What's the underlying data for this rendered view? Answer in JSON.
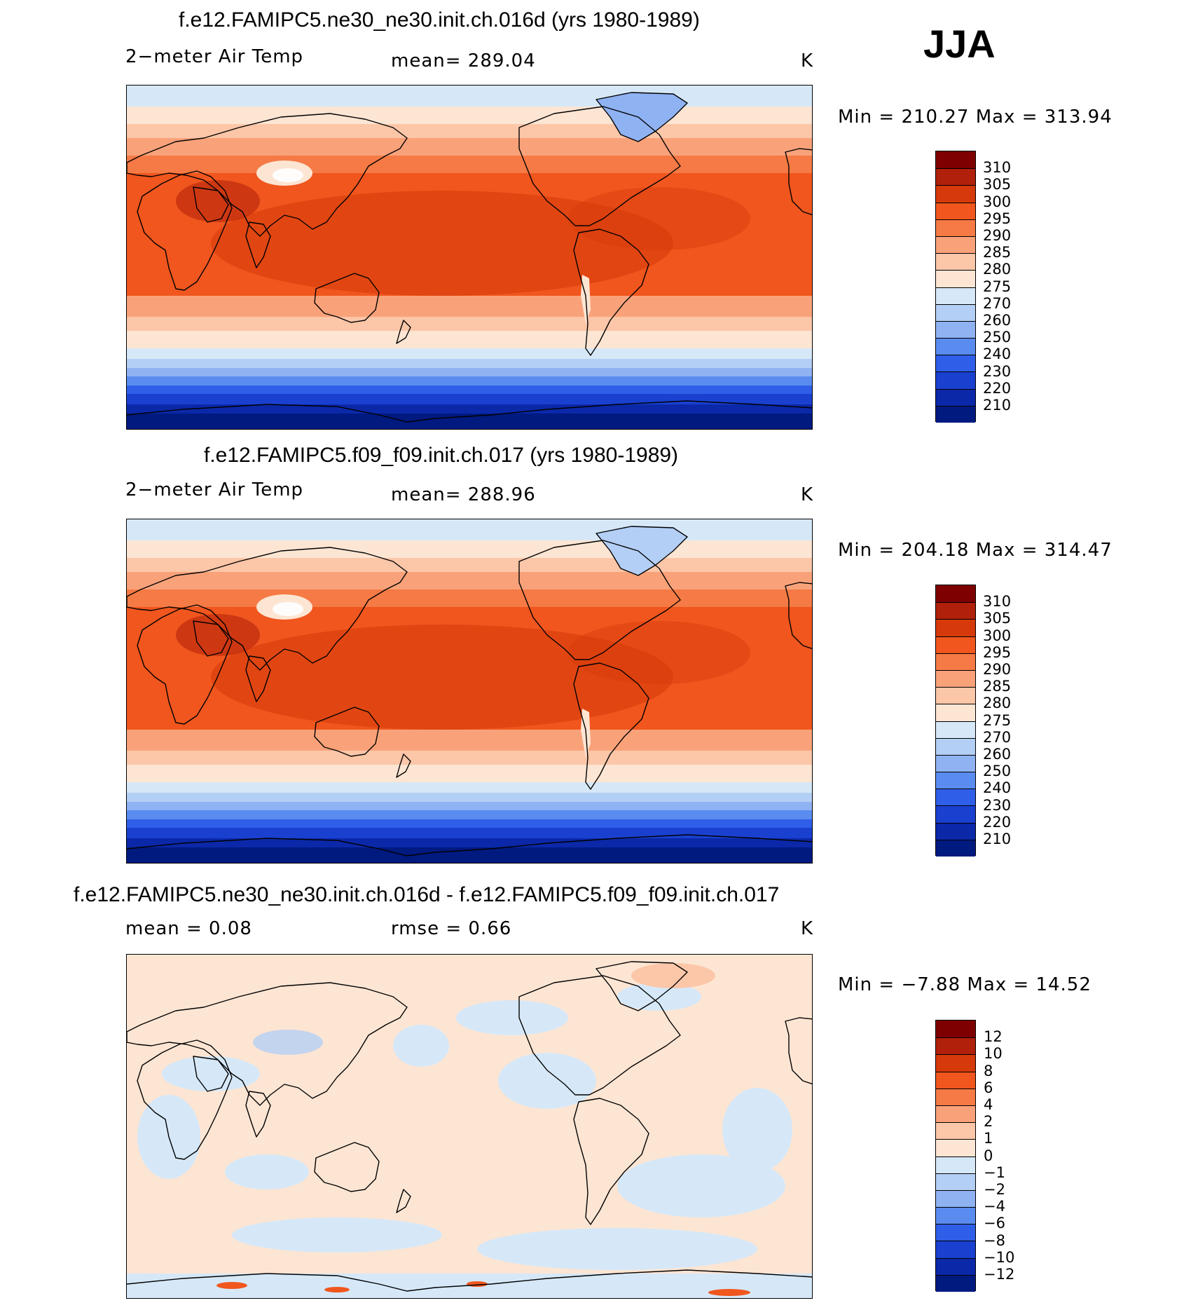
{
  "season": "JJA",
  "panels": [
    {
      "title": "f.e12.FAMIPC5.ne30_ne30.init.ch.016d (yrs 1980-1989)",
      "left_label": "2−meter Air Temp",
      "center_label": "mean=  289.04",
      "units": "K",
      "minmax": "Min  =  210.27  Max  =  313.94",
      "kind": "abs"
    },
    {
      "title": "f.e12.FAMIPC5.f09_f09.init.ch.017 (yrs 1980-1989)",
      "left_label": "2−meter Air Temp",
      "center_label": "mean=  288.96",
      "units": "K",
      "minmax": "Min  =  204.18  Max  =  314.47",
      "kind": "abs"
    },
    {
      "title": "f.e12.FAMIPC5.ne30_ne30.init.ch.016d - f.e12.FAMIPC5.f09_f09.init.ch.017",
      "left_label": "mean  =     0.08",
      "center_label": "rmse  =     0.66",
      "units": "K",
      "minmax": "Min  =    −7.88  Max  =    14.52",
      "kind": "diff"
    }
  ],
  "colorbars": {
    "abs": {
      "labels": [
        "310",
        "305",
        "300",
        "295",
        "290",
        "285",
        "280",
        "275",
        "270",
        "260",
        "250",
        "240",
        "230",
        "220",
        "210"
      ],
      "colors": [
        "#7f0000",
        "#b0200a",
        "#d63a0a",
        "#f0561e",
        "#f57a45",
        "#f9a27a",
        "#fcc6a8",
        "#fde5d3",
        "#d6e8f8",
        "#b4cff5",
        "#8fb2f2",
        "#5a8cf0",
        "#2f5fe8",
        "#1a40d0",
        "#0a28a8",
        "#001a80"
      ]
    },
    "diff": {
      "labels": [
        "12",
        "10",
        "8",
        "6",
        "4",
        "2",
        "1",
        "0",
        "−1",
        "−2",
        "−4",
        "−6",
        "−8",
        "−10",
        "−12"
      ],
      "colors": [
        "#7f0000",
        "#b0200a",
        "#d63a0a",
        "#f0561e",
        "#f57a45",
        "#f9a27a",
        "#fcc6a8",
        "#fde5d3",
        "#d6e8f8",
        "#b4cff5",
        "#8fb2f2",
        "#5a8cf0",
        "#2f5fe8",
        "#1a40d0",
        "#0a28a8",
        "#001a80"
      ]
    }
  }
}
